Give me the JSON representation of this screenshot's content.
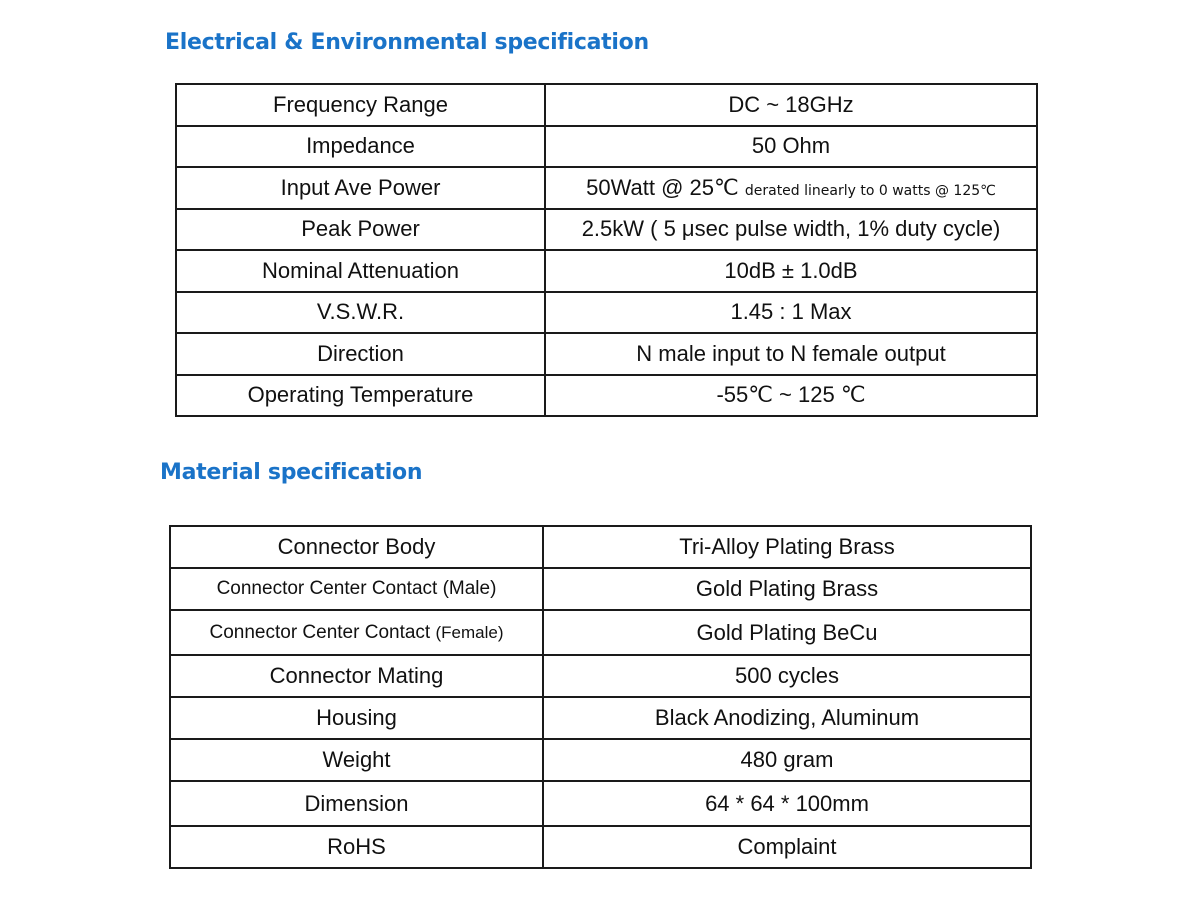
{
  "electrical": {
    "title": "Electrical & Environmental specification",
    "rows": [
      {
        "label": "Frequency Range",
        "value": "DC ~ 18GHz"
      },
      {
        "label": "Impedance",
        "value": "50 Ohm"
      },
      {
        "label": "Input Ave Power",
        "value": "50Watt @ 25℃",
        "note": "derated linearly to 0 watts @ 125℃"
      },
      {
        "label": "Peak Power",
        "value": "2.5kW ( 5 μsec pulse width, 1% duty cycle)"
      },
      {
        "label": "Nominal Attenuation",
        "value": "10dB ± 1.0dB"
      },
      {
        "label": "V.S.W.R.",
        "value": "1.45 : 1 Max"
      },
      {
        "label": "Direction",
        "value": "N male input to N female output"
      },
      {
        "label": "Operating Temperature",
        "value": "-55℃ ~ 125 ℃"
      }
    ]
  },
  "material": {
    "title": "Material specification",
    "rows": [
      {
        "label": "Connector Body",
        "value": "Tri-Alloy Plating Brass"
      },
      {
        "label": "Connector Center Contact (Male)",
        "value": "Gold Plating Brass"
      },
      {
        "label": "Connector Center Contact",
        "label_suffix": "(Female)",
        "value": "Gold Plating BeCu"
      },
      {
        "label": "Connector Mating",
        "value": "500 cycles"
      },
      {
        "label": "Housing",
        "value": "Black Anodizing, Aluminum"
      },
      {
        "label": "Weight",
        "value": "480 gram"
      },
      {
        "label": "Dimension",
        "value": "64 * 64 * 100mm"
      },
      {
        "label": "RoHS",
        "value": "Complaint"
      }
    ]
  }
}
